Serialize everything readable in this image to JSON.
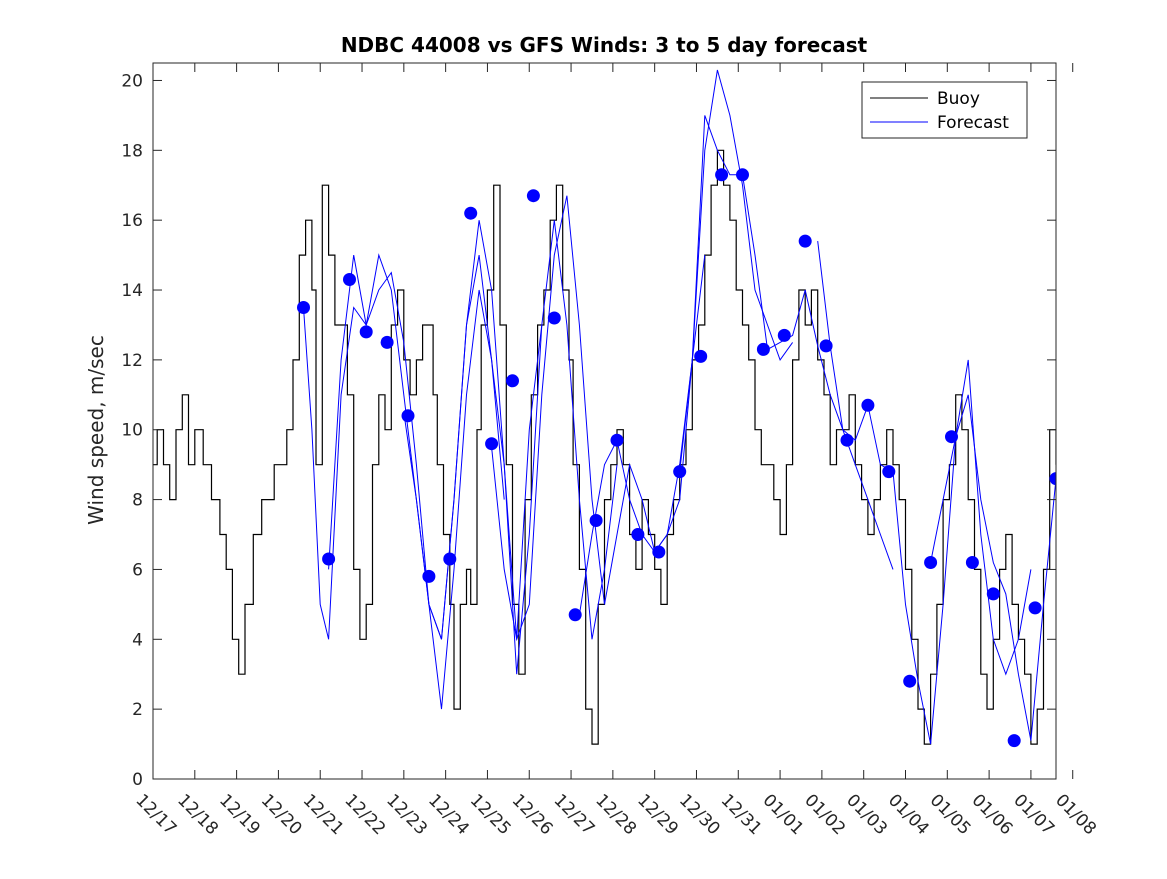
{
  "chart_data": {
    "type": "line",
    "title": "NDBC 44008 vs GFS Winds: 3 to 5 day forecast",
    "xlabel": "",
    "ylabel": "Wind speed, m/sec",
    "ylim": [
      0,
      20.5
    ],
    "yticks": [
      0,
      2,
      4,
      6,
      8,
      10,
      12,
      14,
      16,
      18,
      20
    ],
    "xlim": [
      0,
      21.6
    ],
    "xticks": [
      {
        "pos": 0,
        "label": "12/17"
      },
      {
        "pos": 1,
        "label": "12/18"
      },
      {
        "pos": 2,
        "label": "12/19"
      },
      {
        "pos": 3,
        "label": "12/20"
      },
      {
        "pos": 4,
        "label": "12/21"
      },
      {
        "pos": 5,
        "label": "12/22"
      },
      {
        "pos": 6,
        "label": "12/23"
      },
      {
        "pos": 7,
        "label": "12/24"
      },
      {
        "pos": 8,
        "label": "12/25"
      },
      {
        "pos": 9,
        "label": "12/26"
      },
      {
        "pos": 10,
        "label": "12/27"
      },
      {
        "pos": 11,
        "label": "12/28"
      },
      {
        "pos": 12,
        "label": "12/29"
      },
      {
        "pos": 13,
        "label": "12/30"
      },
      {
        "pos": 14,
        "label": "12/31"
      },
      {
        "pos": 15,
        "label": "01/01"
      },
      {
        "pos": 16,
        "label": "01/02"
      },
      {
        "pos": 17,
        "label": "01/03"
      },
      {
        "pos": 18,
        "label": "01/04"
      },
      {
        "pos": 19,
        "label": "01/05"
      },
      {
        "pos": 20,
        "label": "01/06"
      },
      {
        "pos": 21,
        "label": "01/07"
      },
      {
        "pos": 22,
        "label": "01/08"
      }
    ],
    "grid": false,
    "legend_position": "top-right",
    "colors": {
      "buoy": "#000000",
      "forecast": "#0000ff",
      "marker": "#0000ff",
      "axis": "#262626"
    },
    "series": [
      {
        "name": "Buoy",
        "x": [
          0,
          0.1,
          0.25,
          0.4,
          0.55,
          0.7,
          0.85,
          1,
          1.2,
          1.4,
          1.6,
          1.75,
          1.9,
          2.05,
          2.2,
          2.4,
          2.6,
          2.75,
          2.9,
          3.05,
          3.2,
          3.35,
          3.5,
          3.65,
          3.8,
          3.9,
          4.05,
          4.2,
          4.35,
          4.5,
          4.65,
          4.8,
          4.95,
          5.1,
          5.25,
          5.4,
          5.55,
          5.7,
          5.85,
          6,
          6.15,
          6.3,
          6.45,
          6.55,
          6.7,
          6.8,
          6.95,
          7.1,
          7.2,
          7.35,
          7.5,
          7.6,
          7.75,
          7.85,
          8,
          8.15,
          8.3,
          8.45,
          8.6,
          8.75,
          8.9,
          9.05,
          9.2,
          9.35,
          9.5,
          9.65,
          9.8,
          9.95,
          10.05,
          10.2,
          10.35,
          10.5,
          10.65,
          10.8,
          10.95,
          11.1,
          11.25,
          11.4,
          11.55,
          11.7,
          11.85,
          12,
          12.15,
          12.3,
          12.45,
          12.6,
          12.75,
          12.9,
          13.05,
          13.2,
          13.35,
          13.5,
          13.65,
          13.8,
          13.95,
          14.1,
          14.25,
          14.4,
          14.55,
          14.7,
          14.85,
          15,
          15.15,
          15.3,
          15.45,
          15.6,
          15.75,
          15.9,
          16.05,
          16.2,
          16.35,
          16.5,
          16.65,
          16.8,
          16.95,
          17.1,
          17.25,
          17.4,
          17.55,
          17.7,
          17.85,
          18,
          18.15,
          18.3,
          18.45,
          18.6,
          18.75,
          18.9,
          19.05,
          19.2,
          19.35,
          19.5,
          19.65,
          19.8,
          19.95,
          20.1,
          20.25,
          20.4,
          20.55,
          20.7,
          20.85,
          21,
          21.15,
          21.3,
          21.45,
          21.6
        ],
        "values": [
          9,
          10,
          9,
          8,
          10,
          11,
          9,
          10,
          9,
          8,
          7,
          6,
          4,
          3,
          5,
          7,
          8,
          8,
          9,
          9,
          10,
          12,
          15,
          16,
          14,
          9,
          17,
          15,
          13,
          13,
          11,
          6,
          4,
          5,
          9,
          11,
          10,
          13,
          14,
          12,
          11,
          12,
          13,
          13,
          11,
          9,
          7,
          5,
          2,
          5,
          6,
          5,
          10,
          13,
          14,
          17,
          13,
          9,
          5,
          3,
          8,
          11,
          13,
          14,
          16,
          17,
          14,
          12,
          9,
          6,
          2,
          1,
          5,
          8,
          9,
          10,
          9,
          7,
          6,
          8,
          7,
          6,
          5,
          7,
          8,
          9,
          10,
          12,
          13,
          15,
          17,
          18,
          17,
          16,
          14,
          13,
          12,
          10,
          9,
          9,
          8,
          7,
          9,
          12,
          14,
          13,
          14,
          12,
          11,
          9,
          10,
          10,
          11,
          9,
          8,
          7,
          8,
          9,
          10,
          9,
          8,
          6,
          4,
          2,
          1,
          3,
          5,
          8,
          9,
          11,
          10,
          8,
          6,
          3,
          2,
          4,
          6,
          7,
          5,
          4,
          3,
          1,
          2,
          6,
          10,
          9
        ]
      },
      {
        "name": "Forecast",
        "runs": [
          {
            "x": [
              3.6,
              3.8,
              4.0,
              4.2,
              4.5,
              4.8,
              5.1,
              5.4,
              5.7,
              6.0,
              6.3,
              6.6,
              6.9,
              7.2,
              7.5,
              7.8,
              8.1,
              8.4
            ],
            "values": [
              13.5,
              10,
              5,
              4,
              11,
              13.5,
              13,
              14,
              14.5,
              12.5,
              9,
              5,
              2,
              6,
              11,
              14,
              12,
              8
            ]
          },
          {
            "x": [
              4.2,
              4.5,
              4.8,
              5.1,
              5.4,
              5.7,
              6.0,
              6.3,
              6.6,
              6.9,
              7.2,
              7.5,
              7.8,
              8.1,
              8.4,
              8.7,
              9.0,
              9.3
            ],
            "values": [
              6,
              12,
              15,
              13,
              15,
              14,
              11,
              8,
              5,
              4,
              8,
              13,
              15,
              12,
              9,
              4,
              10,
              13
            ]
          },
          {
            "x": [
              6.0,
              6.3,
              6.6,
              6.9,
              7.2,
              7.5,
              7.8,
              8.1,
              8.4,
              8.7,
              9.0,
              9.3,
              9.6,
              9.9,
              10.2,
              10.5,
              10.8,
              11.1
            ],
            "values": [
              10.5,
              8,
              5,
              4,
              8,
              13,
              16,
              14,
              9,
              3,
              7,
              13,
              16,
              13,
              8,
              4,
              6,
              9
            ]
          },
          {
            "x": [
              8.1,
              8.4,
              8.7,
              9.0,
              9.3,
              9.6,
              9.9,
              10.2,
              10.5,
              10.8,
              11.1,
              11.4,
              11.7,
              12.0,
              12.3,
              12.6,
              12.9,
              13.2
            ],
            "values": [
              9.5,
              6,
              4,
              5,
              11,
              15,
              16.7,
              13,
              8,
              5,
              7,
              9,
              8,
              6.5,
              7,
              8,
              12,
              15
            ]
          },
          {
            "x": [
              10.2,
              10.5,
              10.8,
              11.1,
              11.4,
              11.7,
              12.0,
              12.3,
              12.6,
              12.9,
              13.2,
              13.5,
              13.8,
              14.1,
              14.4,
              14.7,
              15.0,
              15.3
            ],
            "values": [
              4.7,
              7,
              9,
              9.7,
              8,
              7,
              6.5,
              7,
              9,
              12,
              18,
              20.3,
              19,
              17,
              14,
              13,
              12,
              12.5
            ]
          },
          {
            "x": [
              12.6,
              12.9,
              13.2,
              13.5,
              13.8,
              14.1,
              14.4,
              14.7,
              15.0,
              15.3,
              15.6,
              15.9,
              16.2,
              16.5,
              16.8,
              17.1,
              17.4,
              17.7
            ],
            "values": [
              8.8,
              12,
              19,
              18,
              17.3,
              17.3,
              15,
              12.3,
              12.5,
              12.7,
              14,
              12.4,
              11,
              10,
              9,
              8,
              7,
              6
            ]
          },
          {
            "x": [
              15.9,
              16.2,
              16.5,
              16.8,
              17.1,
              17.4,
              17.7,
              18.0,
              18.3,
              18.6,
              18.9,
              19.2,
              19.5,
              19.8,
              20.1,
              20.4,
              20.7,
              21.0
            ],
            "values": [
              15.4,
              12.4,
              10,
              9.7,
              10.7,
              9,
              8.8,
              5,
              2.8,
              1,
              5,
              9.8,
              12,
              7,
              4,
              3,
              4,
              6
            ]
          },
          {
            "x": [
              18.6,
              18.9,
              19.2,
              19.5,
              19.8,
              20.1,
              20.4,
              20.7,
              21.0,
              21.3,
              21.6
            ],
            "values": [
              6.2,
              8,
              9.8,
              11,
              8,
              6.2,
              5.3,
              3,
              1.1,
              5,
              8.6
            ]
          }
        ]
      }
    ],
    "forecast_markers": [
      {
        "x": 3.6,
        "y": 13.5
      },
      {
        "x": 4.2,
        "y": 6.3
      },
      {
        "x": 4.7,
        "y": 14.3
      },
      {
        "x": 5.1,
        "y": 12.8
      },
      {
        "x": 5.6,
        "y": 12.5
      },
      {
        "x": 6.1,
        "y": 10.4
      },
      {
        "x": 6.6,
        "y": 5.8
      },
      {
        "x": 7.1,
        "y": 6.3
      },
      {
        "x": 7.6,
        "y": 16.2
      },
      {
        "x": 8.1,
        "y": 9.6
      },
      {
        "x": 8.6,
        "y": 11.4
      },
      {
        "x": 9.1,
        "y": 16.7
      },
      {
        "x": 9.6,
        "y": 13.2
      },
      {
        "x": 10.1,
        "y": 4.7
      },
      {
        "x": 10.6,
        "y": 7.4
      },
      {
        "x": 11.1,
        "y": 9.7
      },
      {
        "x": 11.6,
        "y": 7.0
      },
      {
        "x": 12.1,
        "y": 6.5
      },
      {
        "x": 12.6,
        "y": 8.8
      },
      {
        "x": 13.1,
        "y": 12.1
      },
      {
        "x": 13.6,
        "y": 17.3
      },
      {
        "x": 14.1,
        "y": 17.3
      },
      {
        "x": 14.6,
        "y": 12.3
      },
      {
        "x": 15.1,
        "y": 12.7
      },
      {
        "x": 15.6,
        "y": 15.4
      },
      {
        "x": 16.1,
        "y": 12.4
      },
      {
        "x": 16.6,
        "y": 9.7
      },
      {
        "x": 17.1,
        "y": 10.7
      },
      {
        "x": 17.6,
        "y": 8.8
      },
      {
        "x": 18.1,
        "y": 2.8
      },
      {
        "x": 18.6,
        "y": 6.2
      },
      {
        "x": 19.1,
        "y": 9.8
      },
      {
        "x": 19.6,
        "y": 6.2
      },
      {
        "x": 20.1,
        "y": 5.3
      },
      {
        "x": 20.6,
        "y": 1.1
      },
      {
        "x": 21.1,
        "y": 4.9
      },
      {
        "x": 21.6,
        "y": 8.6
      }
    ]
  }
}
